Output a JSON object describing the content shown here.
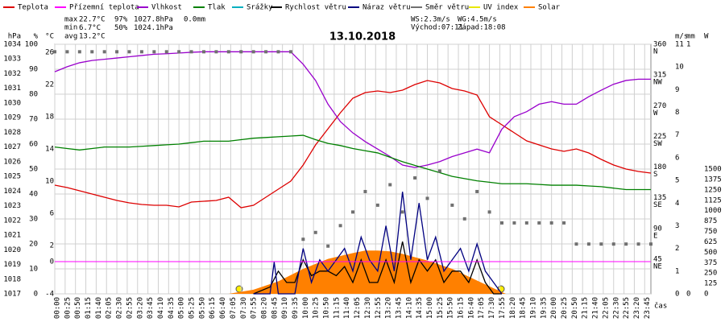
{
  "chart_data": {
    "type": "line",
    "title": "13.10.2018",
    "stats": {
      "max_label": "max",
      "max": [
        "22.7°C",
        "97%",
        "1027.8hPa",
        "0.0mm"
      ],
      "min_label": "min",
      "min": [
        "6.7°C",
        "50%",
        "1024.1hPa"
      ],
      "avg_label": "avg",
      "avg": [
        "13.2°C"
      ],
      "wind": [
        "WS:2.3m/s",
        "WG:4.5m/s"
      ],
      "sun": [
        "Východ:07:11",
        "Západ:18:08"
      ]
    },
    "xlabel": "čas",
    "xlim": [
      0,
      1440
    ],
    "xticks": [
      {
        "value": 0,
        "label": "00:00"
      },
      {
        "value": 25,
        "label": "00:25"
      },
      {
        "value": 50,
        "label": "00:50"
      },
      {
        "value": 75,
        "label": "01:15"
      },
      {
        "value": 100,
        "label": "01:40"
      },
      {
        "value": 125,
        "label": "02:05"
      },
      {
        "value": 150,
        "label": "02:30"
      },
      {
        "value": 175,
        "label": "02:55"
      },
      {
        "value": 200,
        "label": "03:20"
      },
      {
        "value": 225,
        "label": "03:45"
      },
      {
        "value": 250,
        "label": "04:10"
      },
      {
        "value": 275,
        "label": "04:35"
      },
      {
        "value": 300,
        "label": "05:00"
      },
      {
        "value": 325,
        "label": "05:25"
      },
      {
        "value": 350,
        "label": "05:50"
      },
      {
        "value": 375,
        "label": "06:15"
      },
      {
        "value": 400,
        "label": "06:40"
      },
      {
        "value": 425,
        "label": "07:05"
      },
      {
        "value": 450,
        "label": "07:30"
      },
      {
        "value": 475,
        "label": "07:55"
      },
      {
        "value": 500,
        "label": "08:20"
      },
      {
        "value": 525,
        "label": "08:45"
      },
      {
        "value": 550,
        "label": "09:10"
      },
      {
        "value": 575,
        "label": "09:35"
      },
      {
        "value": 600,
        "label": "10:00"
      },
      {
        "value": 625,
        "label": "10:25"
      },
      {
        "value": 650,
        "label": "10:50"
      },
      {
        "value": 675,
        "label": "11:15"
      },
      {
        "value": 700,
        "label": "11:40"
      },
      {
        "value": 725,
        "label": "12:05"
      },
      {
        "value": 750,
        "label": "12:30"
      },
      {
        "value": 775,
        "label": "12:55"
      },
      {
        "value": 800,
        "label": "13:20"
      },
      {
        "value": 825,
        "label": "13:45"
      },
      {
        "value": 850,
        "label": "14:10"
      },
      {
        "value": 875,
        "label": "14:35"
      },
      {
        "value": 900,
        "label": "15:00"
      },
      {
        "value": 925,
        "label": "15:25"
      },
      {
        "value": 950,
        "label": "15:50"
      },
      {
        "value": 975,
        "label": "16:15"
      },
      {
        "value": 1000,
        "label": "16:40"
      },
      {
        "value": 1025,
        "label": "17:05"
      },
      {
        "value": 1050,
        "label": "17:30"
      },
      {
        "value": 1075,
        "label": "17:55"
      },
      {
        "value": 1100,
        "label": "18:20"
      },
      {
        "value": 1125,
        "label": "18:45"
      },
      {
        "value": 1150,
        "label": "19:10"
      },
      {
        "value": 1175,
        "label": "19:35"
      },
      {
        "value": 1200,
        "label": "20:00"
      },
      {
        "value": 1225,
        "label": "20:25"
      },
      {
        "value": 1250,
        "label": "20:50"
      },
      {
        "value": 1275,
        "label": "21:15"
      },
      {
        "value": 1300,
        "label": "21:40"
      },
      {
        "value": 1325,
        "label": "22:05"
      },
      {
        "value": 1350,
        "label": "22:30"
      },
      {
        "value": 1375,
        "label": "22:55"
      },
      {
        "value": 1400,
        "label": "23:20"
      },
      {
        "value": 1425,
        "label": "23:45"
      }
    ],
    "grid": true,
    "axes": {
      "pressure": {
        "unit": "hPa",
        "color": "#008000",
        "side": "left",
        "ylim": [
          1017,
          1034
        ],
        "yticks": [
          1017,
          1018,
          1019,
          1020,
          1021,
          1022,
          1023,
          1024,
          1025,
          1026,
          1027,
          1028,
          1029,
          1030,
          1031,
          1032,
          1033,
          1034
        ]
      },
      "percent": {
        "unit": "%",
        "color": "#9900cc",
        "side": "left",
        "ylim": [
          0,
          100
        ],
        "yticks": [
          0,
          10,
          20,
          30,
          40,
          50,
          60,
          70,
          80,
          90,
          100
        ]
      },
      "temp": {
        "unit": "°C",
        "color": "#dd0000",
        "side": "left",
        "ylim": [
          -4,
          27
        ],
        "yticks": [
          -4,
          0,
          2,
          6,
          10,
          14,
          18,
          22,
          26
        ]
      },
      "dir": {
        "color": "#555555",
        "side": "right",
        "ylim": [
          0,
          366
        ],
        "yticks": [
          45,
          90,
          135,
          180,
          225,
          270,
          315,
          360
        ],
        "compass": [
          "NE",
          "E",
          "SE",
          "S",
          "SW",
          "W",
          "NW",
          "N"
        ]
      },
      "wind": {
        "unit": "m/s",
        "color": "#000080",
        "side": "right",
        "ylim": [
          0,
          11
        ],
        "yticks": [
          0,
          1,
          2,
          3,
          4,
          5,
          6,
          7,
          8,
          9,
          10,
          11
        ]
      },
      "rain": {
        "unit": "mm",
        "color": "#00b0c0",
        "side": "right",
        "ylim": [
          0,
          1
        ],
        "yticks": [
          0,
          1
        ]
      },
      "solar": {
        "unit": "W",
        "color": "#ff8000",
        "side": "right",
        "ylim": [
          0,
          3000
        ],
        "yticks": [
          0,
          125,
          250,
          375,
          500,
          625,
          750,
          875,
          1000,
          1125,
          1250,
          1375,
          1500
        ]
      }
    },
    "freezing_line": 0,
    "series": [
      {
        "name": "Teplota",
        "color": "#dd0000",
        "axis": "temp",
        "kind": "line",
        "x": [
          0,
          30,
          60,
          90,
          120,
          150,
          180,
          210,
          240,
          270,
          300,
          330,
          360,
          390,
          420,
          450,
          480,
          510,
          540,
          570,
          600,
          630,
          660,
          690,
          720,
          750,
          780,
          810,
          840,
          870,
          900,
          930,
          960,
          990,
          1020,
          1050,
          1080,
          1110,
          1140,
          1170,
          1200,
          1230,
          1260,
          1290,
          1320,
          1350,
          1380,
          1410,
          1440
        ],
        "values": [
          9.5,
          9.2,
          8.8,
          8.4,
          8.0,
          7.6,
          7.3,
          7.1,
          7.0,
          7.0,
          6.8,
          7.4,
          7.5,
          7.6,
          8.0,
          6.7,
          7.0,
          8.0,
          9.0,
          10.0,
          12.0,
          14.5,
          16.5,
          18.5,
          20.3,
          21.0,
          21.2,
          21.0,
          21.3,
          22.0,
          22.5,
          22.2,
          21.5,
          21.2,
          20.7,
          18.0,
          17.0,
          16.0,
          15.0,
          14.5,
          14.0,
          13.7,
          14.0,
          13.5,
          12.7,
          12.0,
          11.5,
          11.2,
          11.0
        ]
      },
      {
        "name": "Přízemní teplota",
        "color": "#ff00ff"
      },
      {
        "name": "Vlhkost",
        "color": "#9900cc",
        "axis": "percent",
        "kind": "line",
        "x": [
          0,
          30,
          60,
          90,
          120,
          150,
          180,
          210,
          240,
          270,
          300,
          330,
          360,
          390,
          420,
          450,
          480,
          510,
          540,
          570,
          600,
          630,
          660,
          690,
          720,
          750,
          780,
          810,
          840,
          870,
          900,
          930,
          960,
          990,
          1020,
          1050,
          1080,
          1110,
          1140,
          1170,
          1200,
          1230,
          1260,
          1290,
          1320,
          1350,
          1380,
          1410,
          1440
        ],
        "values": [
          89,
          91,
          92.6,
          93.5,
          94,
          94.5,
          95,
          95.5,
          96,
          96.2,
          96.5,
          96.8,
          97,
          97,
          97,
          97,
          97,
          97,
          97,
          97,
          92,
          85.5,
          76,
          69,
          64.5,
          61,
          58,
          55,
          51.6,
          50.6,
          51.6,
          53,
          55,
          56.5,
          58,
          56.5,
          66,
          71,
          73,
          76,
          77,
          76,
          76,
          79,
          81.6,
          84,
          85.5,
          86,
          86
        ]
      },
      {
        "name": "Tlak",
        "color": "#008000",
        "axis": "pressure",
        "kind": "line",
        "x": [
          0,
          30,
          60,
          90,
          120,
          150,
          180,
          210,
          240,
          270,
          300,
          330,
          360,
          390,
          420,
          450,
          480,
          510,
          540,
          570,
          600,
          630,
          660,
          690,
          720,
          750,
          780,
          810,
          840,
          870,
          900,
          930,
          960,
          990,
          1020,
          1050,
          1080,
          1110,
          1140,
          1170,
          1200,
          1230,
          1260,
          1290,
          1320,
          1350,
          1380,
          1410,
          1440
        ],
        "values": [
          1027.0,
          1026.9,
          1026.8,
          1026.9,
          1027.0,
          1027.0,
          1027.0,
          1027.05,
          1027.1,
          1027.15,
          1027.2,
          1027.3,
          1027.4,
          1027.4,
          1027.4,
          1027.5,
          1027.6,
          1027.65,
          1027.7,
          1027.75,
          1027.8,
          1027.5,
          1027.25,
          1027.1,
          1026.9,
          1026.75,
          1026.6,
          1026.3,
          1026.0,
          1025.75,
          1025.5,
          1025.25,
          1025.0,
          1024.85,
          1024.7,
          1024.6,
          1024.5,
          1024.5,
          1024.5,
          1024.45,
          1024.4,
          1024.4,
          1024.4,
          1024.35,
          1024.3,
          1024.2,
          1024.1,
          1024.1,
          1024.1
        ]
      },
      {
        "name": "Srážky",
        "color": "#00b0c0"
      },
      {
        "name": "Rychlost větru",
        "color": "#000000",
        "axis": "wind",
        "kind": "line",
        "x": [
          480,
          520,
          540,
          560,
          580,
          600,
          620,
          640,
          660,
          680,
          700,
          720,
          740,
          760,
          780,
          800,
          820,
          840,
          860,
          880,
          900,
          920,
          940,
          960,
          980,
          1000,
          1020,
          1040,
          1060,
          1080
        ],
        "values": [
          0,
          0.3,
          1.0,
          0.5,
          0.5,
          1.5,
          0.8,
          1.0,
          1.0,
          0.8,
          1.2,
          0.5,
          1.5,
          0.5,
          0.5,
          1.5,
          0.5,
          2.3,
          0.5,
          1.5,
          1.0,
          1.5,
          0.5,
          1.0,
          1.0,
          0.5,
          1.5,
          0.5,
          0,
          0
        ]
      },
      {
        "name": "Náraz větru",
        "color": "#000080",
        "axis": "wind",
        "kind": "line",
        "x": [
          480,
          520,
          530,
          540,
          560,
          580,
          600,
          620,
          640,
          660,
          680,
          700,
          720,
          740,
          760,
          780,
          800,
          820,
          840,
          860,
          880,
          900,
          920,
          940,
          960,
          980,
          1000,
          1020,
          1040,
          1060,
          1080
        ],
        "values": [
          0,
          0,
          1.4,
          0,
          0,
          0,
          2.0,
          0.5,
          1.5,
          1.0,
          1.5,
          2.0,
          1.0,
          2.5,
          1.5,
          1.0,
          3.0,
          1.0,
          4.5,
          1.5,
          4.0,
          1.5,
          2.5,
          1.0,
          1.5,
          2.0,
          1.0,
          2.2,
          1.0,
          0.5,
          0
        ]
      },
      {
        "name": "Směr větru",
        "color": "#707070",
        "axis": "dir",
        "kind": "points",
        "x": [
          0,
          30,
          60,
          90,
          120,
          150,
          180,
          210,
          240,
          270,
          300,
          330,
          360,
          390,
          420,
          450,
          480,
          510,
          540,
          570,
          600,
          630,
          660,
          690,
          720,
          750,
          780,
          810,
          840,
          870,
          900,
          930,
          960,
          990,
          1020,
          1050,
          1080,
          1110,
          1140,
          1170,
          1200,
          1230,
          1260,
          1290,
          1320,
          1350,
          1380,
          1410,
          1440
        ],
        "values": [
          355,
          355,
          355,
          355,
          355,
          355,
          355,
          355,
          355,
          355,
          355,
          355,
          355,
          355,
          355,
          355,
          355,
          355,
          355,
          355,
          80,
          90,
          70,
          100,
          120,
          150,
          130,
          160,
          120,
          170,
          140,
          180,
          130,
          110,
          150,
          120,
          104,
          104,
          104,
          104,
          104,
          104,
          73,
          73,
          73,
          73,
          73,
          73,
          73
        ]
      },
      {
        "name": "UV index",
        "color": "#e8e800"
      },
      {
        "name": "Solar",
        "color": "#ff8000",
        "axis": "solar",
        "kind": "area",
        "x": [
          420,
          480,
          540,
          600,
          660,
          720,
          750,
          780,
          810,
          840,
          900,
          960,
          1020,
          1080,
          1090
        ],
        "values": [
          0,
          50,
          150,
          300,
          420,
          490,
          520,
          520,
          510,
          480,
          400,
          300,
          160,
          20,
          0
        ]
      }
    ]
  }
}
